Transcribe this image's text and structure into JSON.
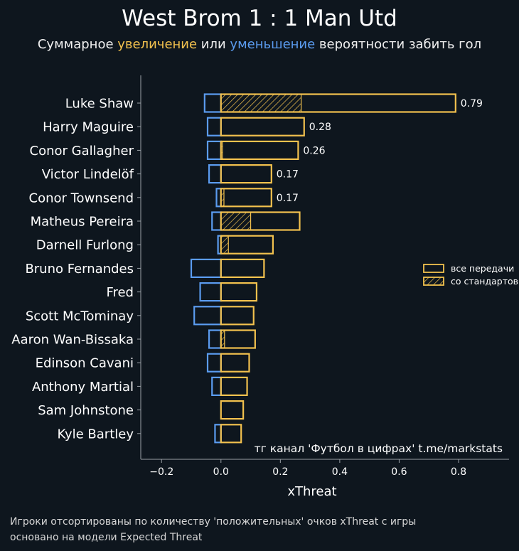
{
  "header": {
    "title": "West Brom 1 : 1 Man Utd",
    "subtitle_part1": "Суммарное ",
    "subtitle_increase": "увеличение",
    "subtitle_part2": " или ",
    "subtitle_decrease": "уменьшение",
    "subtitle_part3": " вероятности забить гол"
  },
  "colors": {
    "background": "#0e161e",
    "positive": "#f2c14e",
    "negative": "#5b9cf0",
    "axis": "#9aa0a6",
    "text": "#ffffff"
  },
  "watermark": "тг канал 'Футбол в цифрах'  t.me/markstats",
  "footer": {
    "line1": "Игроки отсортированы по количеству 'положительных' очков xThreat с игры",
    "line2": "основано на модели Expected Threat"
  },
  "chart_data": {
    "type": "bar",
    "orientation": "horizontal",
    "xlabel": "xThreat",
    "xlim": [
      -0.27,
      0.97
    ],
    "xticks": [
      -0.2,
      0.0,
      0.2,
      0.4,
      0.6,
      0.8
    ],
    "xtick_labels": [
      "−0.2",
      "0.0",
      "0.2",
      "0.4",
      "0.6",
      "0.8"
    ],
    "legend": {
      "position": "right",
      "entries": [
        "все передачи",
        "со стандартов"
      ]
    },
    "players": [
      "Luke Shaw",
      "Harry Maguire",
      "Conor Gallagher",
      "Victor Lindelöf",
      "Conor Townsend",
      "Matheus Pereira",
      "Darnell Furlong",
      "Bruno Fernandes",
      "Fred",
      "Scott McTominay",
      "Aaron Wan-Bissaka",
      "Edinson Cavani",
      "Anthony Martial",
      "Sam Johnstone",
      "Kyle Bartley"
    ],
    "series": [
      {
        "name": "все передачи",
        "role": "positive_total",
        "values": [
          0.79,
          0.28,
          0.26,
          0.17,
          0.17,
          0.265,
          0.175,
          0.145,
          0.12,
          0.11,
          0.115,
          0.095,
          0.088,
          0.075,
          0.068
        ]
      },
      {
        "name": "со стандартов",
        "role": "positive_set_pieces",
        "values": [
          0.27,
          0.0,
          0.005,
          0.0,
          0.01,
          0.1,
          0.025,
          0.0,
          0.0,
          0.0,
          0.012,
          0.0,
          0.0,
          0.0,
          0.0
        ]
      },
      {
        "role": "negative_total",
        "values": [
          -0.055,
          -0.045,
          -0.045,
          -0.04,
          -0.015,
          -0.03,
          -0.01,
          -0.1,
          -0.07,
          -0.09,
          -0.04,
          -0.045,
          -0.03,
          0.0,
          -0.02
        ]
      }
    ],
    "value_labels": [
      "0.79",
      "0.28",
      "0.26",
      "0.17",
      "0.17",
      "",
      "",
      "",
      "",
      "",
      "",
      "",
      "",
      "",
      ""
    ]
  }
}
